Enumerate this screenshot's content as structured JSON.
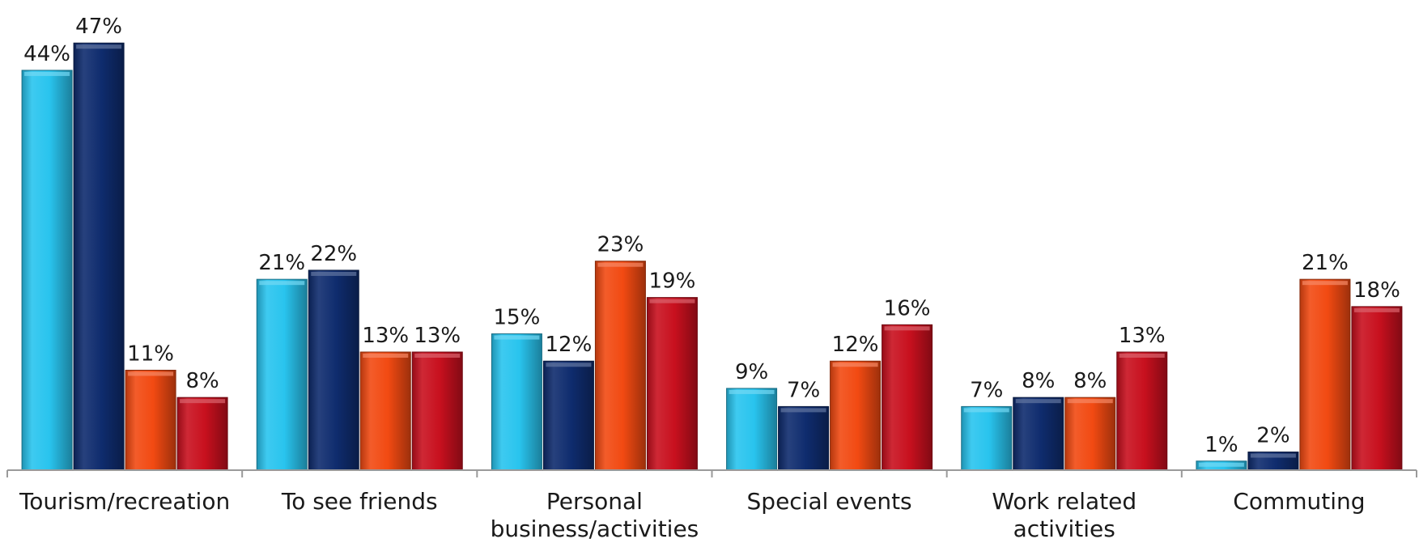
{
  "chart_data": {
    "type": "bar",
    "categories": [
      [
        "Tourism/recreation"
      ],
      [
        "To see friends"
      ],
      [
        "Personal",
        "business/activities"
      ],
      [
        "Special events"
      ],
      [
        "Work related",
        "activities"
      ],
      [
        "Commuting"
      ]
    ],
    "series": [
      {
        "color": "#29c4ee",
        "values": [
          44,
          21,
          15,
          9,
          7,
          1
        ]
      },
      {
        "color": "#0f2c6e",
        "values": [
          47,
          22,
          12,
          7,
          8,
          2
        ]
      },
      {
        "color": "#f24a12",
        "values": [
          11,
          13,
          23,
          12,
          8,
          21
        ]
      },
      {
        "color": "#c8101e",
        "values": [
          8,
          13,
          19,
          16,
          13,
          18
        ]
      }
    ],
    "value_suffix": "%",
    "ylim": [
      0,
      50
    ],
    "grid": false,
    "legend": "none"
  }
}
